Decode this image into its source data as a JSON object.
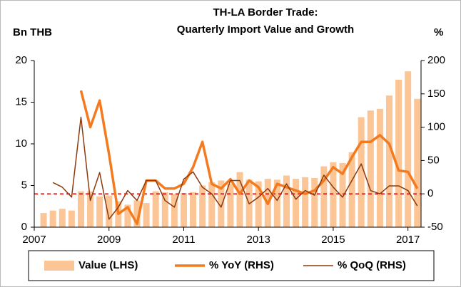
{
  "chart_data": {
    "type": "combo",
    "title": [
      "TH-LA Border Trade:",
      "Quarterly Import Value and Growth"
    ],
    "y_label": "Bn THB",
    "y2_label": "%",
    "x": [
      2007.25,
      2007.5,
      2007.75,
      2008,
      2008.25,
      2008.5,
      2008.75,
      2009,
      2009.25,
      2009.5,
      2009.75,
      2010,
      2010.25,
      2010.5,
      2010.75,
      2011,
      2011.25,
      2011.5,
      2011.75,
      2012,
      2012.25,
      2012.5,
      2012.75,
      2013,
      2013.25,
      2013.5,
      2013.75,
      2014,
      2014.25,
      2014.5,
      2014.75,
      2015,
      2015.25,
      2015.5,
      2015.75,
      2016,
      2016.25,
      2016.5,
      2016.75,
      2017,
      2017.25
    ],
    "xlim": [
      2007,
      2017.35
    ],
    "xticks": [
      2007,
      2009,
      2011,
      2013,
      2015,
      2017
    ],
    "ylim": [
      0,
      20
    ],
    "yticks": [
      0,
      5,
      10,
      15,
      20
    ],
    "y2lim": [
      -50,
      200
    ],
    "y2ticks": [
      -50,
      0,
      50,
      100,
      150,
      200
    ],
    "ref_line": {
      "value": 0,
      "axis": "y2",
      "color": "#e00000"
    },
    "series": [
      {
        "name": "Value (LHS)",
        "type": "bar",
        "color": "#fbc595",
        "values": [
          1.7,
          2.0,
          2.2,
          2.0,
          4.3,
          4.3,
          3.7,
          3.8,
          3.1,
          2.7,
          3.2,
          2.9,
          4.3,
          4.2,
          4.0,
          4.1,
          4.2,
          5.0,
          5.4,
          5.6,
          5.2,
          6.6,
          5.7,
          5.5,
          5.8,
          5.7,
          6.2,
          5.8,
          6.0,
          5.9,
          7.3,
          7.8,
          7.7,
          9.0,
          13.2,
          14.0,
          14.2,
          15.8,
          17.7,
          18.7,
          15.4
        ]
      },
      {
        "name": "% YoY (RHS)",
        "type": "line",
        "axis": "y2",
        "color": "#f47a1f",
        "width": 3.5,
        "values": [
          null,
          null,
          null,
          null,
          155,
          100,
          140,
          60,
          -30,
          -20,
          -45,
          20,
          20,
          8,
          8,
          15,
          40,
          78,
          15,
          8,
          22,
          0,
          20,
          10,
          -15,
          15,
          10,
          5,
          0,
          5,
          20,
          40,
          30,
          55,
          78,
          78,
          88,
          75,
          35,
          33,
          8
        ]
      },
      {
        "name": "% QoQ (RHS)",
        "type": "line",
        "axis": "y2",
        "color": "#8b3a10",
        "width": 1.5,
        "values": [
          null,
          17,
          10,
          -5,
          115,
          -10,
          32,
          -38,
          -20,
          5,
          -10,
          20,
          20,
          -10,
          -20,
          22,
          33,
          10,
          0,
          -20,
          20,
          20,
          -15,
          -5,
          8,
          -10,
          15,
          -8,
          5,
          -2,
          28,
          10,
          -5,
          20,
          45,
          5,
          0,
          12,
          12,
          5,
          -18
        ]
      }
    ]
  }
}
